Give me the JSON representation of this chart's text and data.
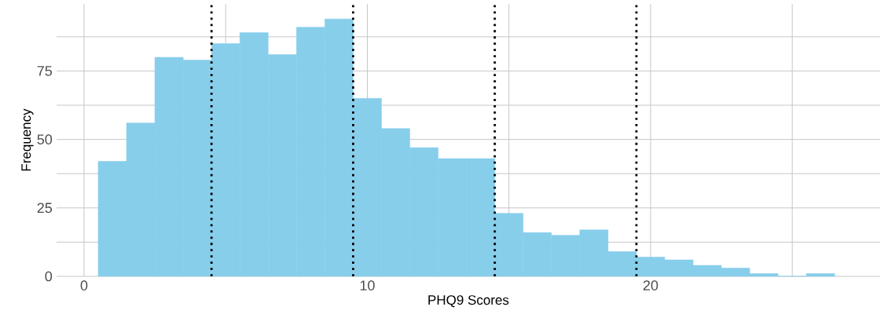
{
  "chart_data": {
    "type": "histogram",
    "xlabel": "PHQ9 Scores",
    "ylabel": "Frequency",
    "color": "#87ceeb",
    "bins": [
      0.5,
      1.5,
      2.5,
      3.5,
      4.5,
      5.5,
      6.5,
      7.5,
      8.5,
      9.5,
      10.5,
      11.5,
      12.5,
      13.5,
      14.5,
      15.5,
      16.5,
      17.5,
      18.5,
      19.5,
      20.5,
      21.5,
      22.5,
      23.5,
      24.5,
      25.5,
      26.5
    ],
    "values": [
      42,
      56,
      80,
      79,
      85,
      89,
      81,
      91,
      94,
      65,
      54,
      47,
      43,
      43,
      23,
      16,
      15,
      17,
      9,
      7,
      6,
      4,
      3,
      1,
      0,
      1
    ],
    "xlim": [
      -0.97,
      28.1
    ],
    "ylim": [
      0,
      99.5
    ],
    "xticks": [
      0,
      {
        "value": 5,
        "label": null
      },
      10,
      {
        "value": 15,
        "label": null
      },
      20,
      {
        "value": 25,
        "label": null
      }
    ],
    "yticks": [
      0,
      {
        "value": 12.5,
        "label": null
      },
      25,
      {
        "value": 37.5,
        "label": null
      },
      50,
      {
        "value": 62.5,
        "label": null
      },
      75,
      {
        "value": 87.5,
        "label": null
      }
    ],
    "grid": true,
    "ref_lines": [
      {
        "axis": "x",
        "value": 4.5,
        "color": "#000000",
        "line_style": "dotted"
      },
      {
        "axis": "x",
        "value": 9.5,
        "color": "#000000",
        "line_style": "dotted"
      },
      {
        "axis": "x",
        "value": 14.5,
        "color": "#000000",
        "line_style": "dotted"
      },
      {
        "axis": "x",
        "value": 19.5,
        "color": "#000000",
        "line_style": "dotted"
      }
    ]
  }
}
